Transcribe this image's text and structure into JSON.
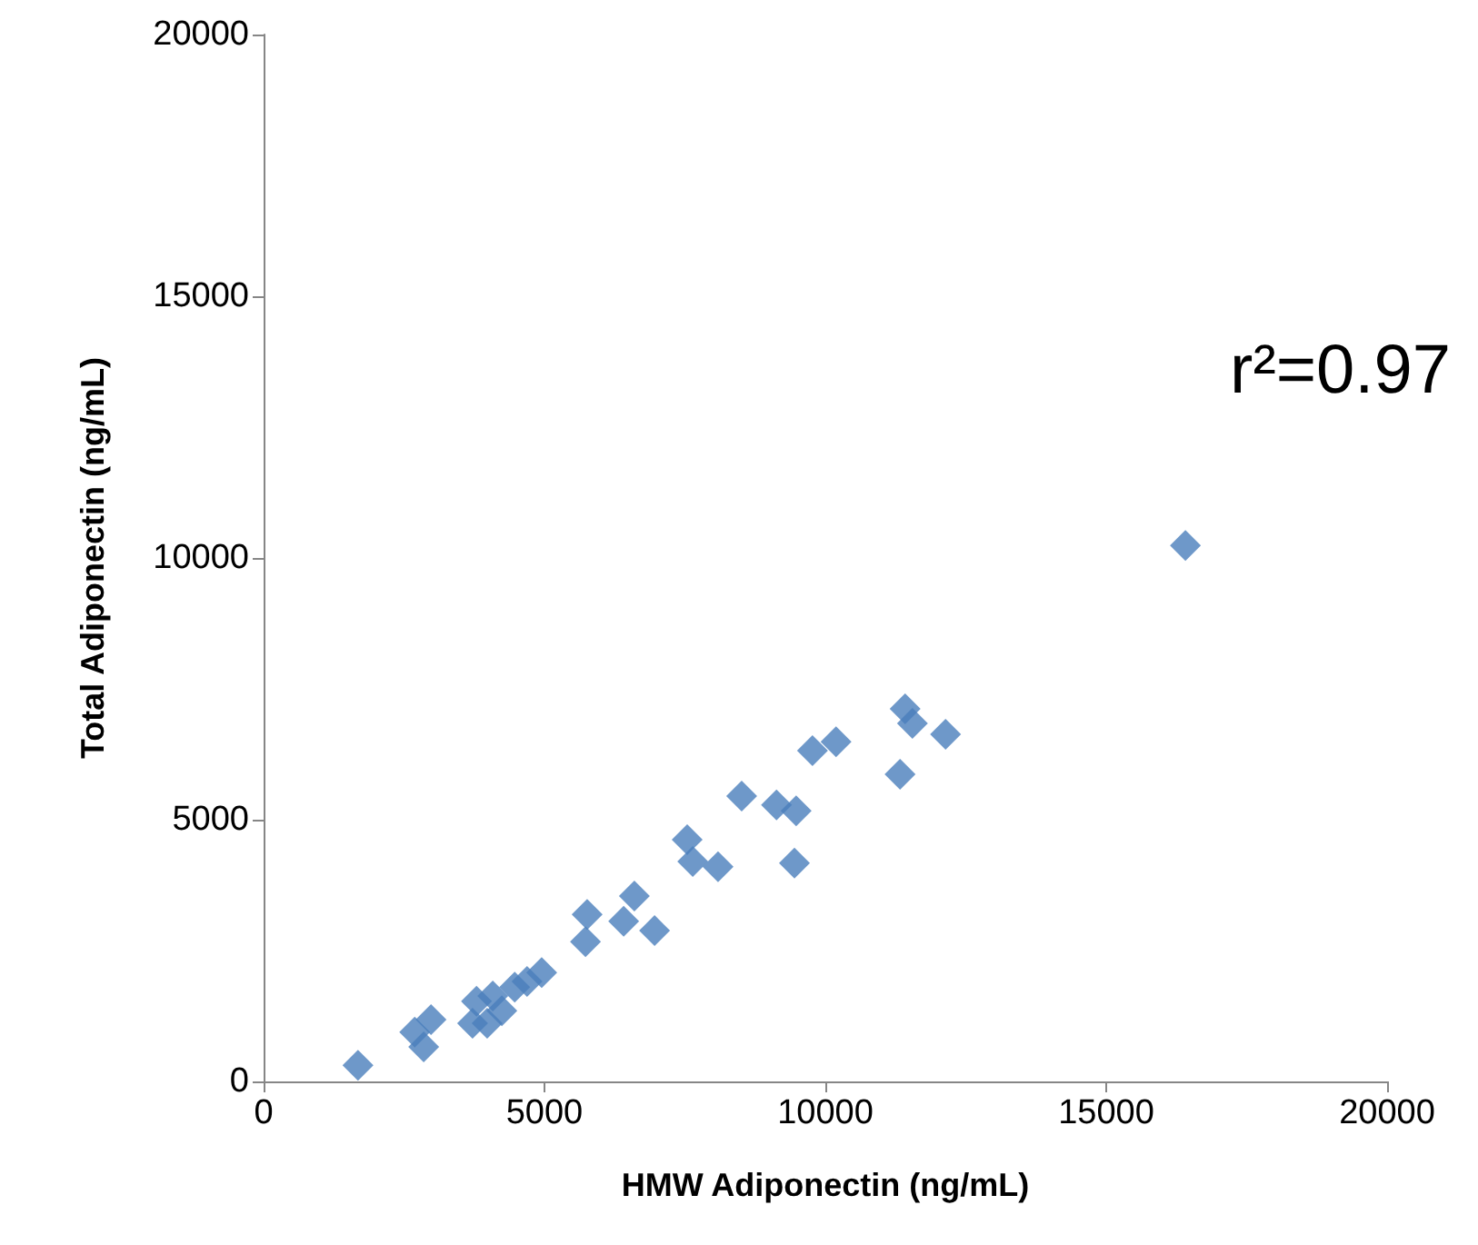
{
  "chart_data": {
    "type": "scatter",
    "xlabel": "HMW Adiponectin (ng/mL)",
    "ylabel": "Total Adiponectin (ng/mL)",
    "annotations": [
      "r²=0.97"
    ],
    "x": [
      1680,
      2690,
      2980,
      2850,
      3790,
      3720,
      3980,
      4240,
      4080,
      4470,
      4690,
      4950,
      5730,
      5760,
      6410,
      6600,
      6960,
      7540,
      7640,
      8090,
      8510,
      9130,
      9480,
      9450,
      9770,
      10190,
      11330,
      11420,
      11550,
      12140,
      16410
    ],
    "values": [
      310,
      940,
      1180,
      660,
      1530,
      1110,
      1110,
      1350,
      1630,
      1800,
      1910,
      2080,
      2670,
      3190,
      3060,
      3540,
      2880,
      4620,
      4200,
      4100,
      5450,
      5280,
      5170,
      4170,
      6320,
      6490,
      5870,
      7120,
      6840,
      6630,
      10240
    ],
    "color": "#4a7ebb",
    "marker": "diamond",
    "grid": false,
    "xlim": [
      0,
      20000
    ],
    "ylim": [
      0,
      20000
    ],
    "xticks": [
      0,
      5000,
      10000,
      15000,
      20000
    ],
    "yticks": [
      0,
      5000,
      10000,
      15000,
      20000
    ]
  }
}
